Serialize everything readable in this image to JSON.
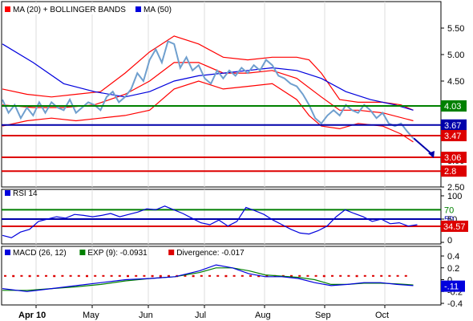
{
  "colors": {
    "price": "#6f9fce",
    "ma20": "#ff0000",
    "ma50": "#0000dd",
    "resistance": "#008000",
    "support": "#0000aa",
    "target": "#dd0000",
    "macd": "#0000dd",
    "signal": "#008000",
    "divergence": "#dd0000",
    "label_green": "#008000",
    "label_blue": "#0000aa",
    "label_red": "#dd0000",
    "grid": "#dddddd",
    "axis": "#000000"
  },
  "chart_data": [
    {
      "type": "line",
      "panel": "price",
      "legend": [
        {
          "label": "MA (20) + BOLLINGER BANDS",
          "color": "#ff0000"
        },
        {
          "label": "MA (50)",
          "color": "#0000dd"
        }
      ],
      "y_ticks": [
        "5.50",
        "5.00",
        "4.50",
        "4.00",
        "3.50",
        "3.00",
        "2.50"
      ],
      "ylim": [
        2.5,
        6.0
      ],
      "x_months": [
        "Apr 10",
        "May",
        "Jun",
        "Jul",
        "Aug",
        "Sep",
        "Oct"
      ],
      "series": {
        "price": [
          [
            0,
            4.15
          ],
          [
            3,
            3.9
          ],
          [
            6,
            4.05
          ],
          [
            9,
            3.8
          ],
          [
            12,
            4.0
          ],
          [
            15,
            3.85
          ],
          [
            18,
            4.1
          ],
          [
            21,
            3.9
          ],
          [
            24,
            4.1
          ],
          [
            27,
            4.0
          ],
          [
            30,
            3.95
          ],
          [
            33,
            4.15
          ],
          [
            36,
            3.9
          ],
          [
            39,
            4.0
          ],
          [
            42,
            4.1
          ],
          [
            45,
            4.05
          ],
          [
            48,
            3.95
          ],
          [
            51,
            4.2
          ],
          [
            54,
            4.3
          ],
          [
            57,
            4.1
          ],
          [
            60,
            4.2
          ],
          [
            63,
            4.35
          ],
          [
            66,
            4.65
          ],
          [
            69,
            4.5
          ],
          [
            72,
            4.9
          ],
          [
            75,
            5.1
          ],
          [
            78,
            4.85
          ],
          [
            81,
            5.25
          ],
          [
            84,
            5.2
          ],
          [
            87,
            4.75
          ],
          [
            90,
            4.95
          ],
          [
            93,
            4.7
          ],
          [
            96,
            4.8
          ],
          [
            99,
            4.55
          ],
          [
            102,
            4.45
          ],
          [
            105,
            4.7
          ],
          [
            108,
            4.55
          ],
          [
            111,
            4.7
          ],
          [
            114,
            4.6
          ],
          [
            117,
            4.75
          ],
          [
            120,
            4.65
          ],
          [
            123,
            4.8
          ],
          [
            126,
            4.7
          ],
          [
            129,
            4.9
          ],
          [
            132,
            4.8
          ],
          [
            135,
            4.6
          ],
          [
            138,
            4.55
          ],
          [
            141,
            4.45
          ],
          [
            144,
            4.4
          ],
          [
            147,
            4.25
          ],
          [
            150,
            4.05
          ],
          [
            153,
            3.8
          ],
          [
            156,
            3.7
          ],
          [
            159,
            3.85
          ],
          [
            162,
            3.95
          ],
          [
            165,
            3.85
          ],
          [
            168,
            4.05
          ],
          [
            171,
            3.95
          ],
          [
            174,
            3.9
          ],
          [
            177,
            4.05
          ],
          [
            180,
            3.95
          ],
          [
            183,
            3.8
          ],
          [
            186,
            3.9
          ],
          [
            189,
            3.7
          ],
          [
            192,
            3.65
          ],
          [
            195,
            3.7
          ],
          [
            198,
            3.55
          ],
          [
            201,
            3.42
          ]
        ],
        "ma20": [
          [
            0,
            4.05
          ],
          [
            15,
            4.0
          ],
          [
            30,
            4.0
          ],
          [
            45,
            4.05
          ],
          [
            60,
            4.25
          ],
          [
            72,
            4.5
          ],
          [
            84,
            4.85
          ],
          [
            96,
            4.85
          ],
          [
            108,
            4.65
          ],
          [
            120,
            4.65
          ],
          [
            132,
            4.7
          ],
          [
            144,
            4.55
          ],
          [
            156,
            4.2
          ],
          [
            165,
            3.95
          ],
          [
            174,
            3.95
          ],
          [
            186,
            3.9
          ],
          [
            201,
            3.75
          ]
        ],
        "bb_upper": [
          [
            0,
            4.35
          ],
          [
            12,
            4.25
          ],
          [
            24,
            4.2
          ],
          [
            36,
            4.25
          ],
          [
            48,
            4.3
          ],
          [
            60,
            4.65
          ],
          [
            72,
            5.05
          ],
          [
            84,
            5.35
          ],
          [
            96,
            5.2
          ],
          [
            108,
            4.95
          ],
          [
            120,
            4.9
          ],
          [
            132,
            4.95
          ],
          [
            144,
            4.95
          ],
          [
            150,
            4.9
          ],
          [
            156,
            4.65
          ],
          [
            165,
            4.15
          ],
          [
            174,
            4.1
          ],
          [
            186,
            4.1
          ],
          [
            195,
            4.05
          ],
          [
            201,
            3.95
          ]
        ],
        "bb_lower": [
          [
            0,
            3.65
          ],
          [
            12,
            3.75
          ],
          [
            24,
            3.8
          ],
          [
            36,
            3.75
          ],
          [
            48,
            3.8
          ],
          [
            60,
            3.85
          ],
          [
            72,
            3.95
          ],
          [
            84,
            4.35
          ],
          [
            96,
            4.5
          ],
          [
            108,
            4.35
          ],
          [
            120,
            4.4
          ],
          [
            132,
            4.45
          ],
          [
            144,
            4.15
          ],
          [
            150,
            3.85
          ],
          [
            156,
            3.65
          ],
          [
            165,
            3.6
          ],
          [
            174,
            3.7
          ],
          [
            186,
            3.65
          ],
          [
            195,
            3.5
          ],
          [
            201,
            3.35
          ]
        ],
        "ma50": [
          [
            0,
            5.2
          ],
          [
            15,
            4.85
          ],
          [
            30,
            4.45
          ],
          [
            45,
            4.3
          ],
          [
            60,
            4.2
          ],
          [
            72,
            4.3
          ],
          [
            84,
            4.5
          ],
          [
            96,
            4.6
          ],
          [
            108,
            4.65
          ],
          [
            120,
            4.7
          ],
          [
            132,
            4.75
          ],
          [
            144,
            4.7
          ],
          [
            156,
            4.55
          ],
          [
            168,
            4.3
          ],
          [
            180,
            4.15
          ],
          [
            192,
            4.05
          ],
          [
            201,
            3.95
          ]
        ]
      },
      "levels": [
        {
          "value": 4.03,
          "label": "4.03",
          "color": "#008000"
        },
        {
          "value": 3.67,
          "label": "3.67",
          "color": "#0000aa"
        },
        {
          "value": 3.47,
          "label": "3.47",
          "color": "#dd0000"
        },
        {
          "value": 3.06,
          "label": "3.06",
          "color": "#dd0000"
        },
        {
          "value": 2.8,
          "label": "2.8",
          "color": "#dd0000"
        }
      ]
    },
    {
      "type": "line",
      "panel": "rsi",
      "legend": [
        {
          "label": "RSI 14",
          "color": "#0000dd"
        }
      ],
      "y_ticks": [
        "100",
        "50",
        "0"
      ],
      "ylim": [
        0,
        100
      ],
      "levels": [
        {
          "value": 70,
          "label": "70",
          "color": "#008000"
        },
        {
          "value": 50,
          "label": "50",
          "color": "#0000aa"
        },
        {
          "value": 34.57,
          "label": "34.57",
          "color": "#dd0000"
        }
      ],
      "values": [
        [
          0,
          15
        ],
        [
          5,
          10
        ],
        [
          10,
          22
        ],
        [
          15,
          28
        ],
        [
          20,
          45
        ],
        [
          25,
          50
        ],
        [
          30,
          55
        ],
        [
          35,
          52
        ],
        [
          40,
          60
        ],
        [
          45,
          58
        ],
        [
          50,
          55
        ],
        [
          55,
          58
        ],
        [
          60,
          62
        ],
        [
          65,
          55
        ],
        [
          70,
          60
        ],
        [
          75,
          65
        ],
        [
          80,
          72
        ],
        [
          85,
          70
        ],
        [
          90,
          78
        ],
        [
          95,
          70
        ],
        [
          100,
          62
        ],
        [
          105,
          52
        ],
        [
          110,
          42
        ],
        [
          115,
          38
        ],
        [
          120,
          48
        ],
        [
          125,
          35
        ],
        [
          130,
          45
        ],
        [
          135,
          75
        ],
        [
          140,
          68
        ],
        [
          145,
          60
        ],
        [
          150,
          48
        ],
        [
          155,
          38
        ],
        [
          160,
          28
        ],
        [
          165,
          20
        ],
        [
          170,
          18
        ],
        [
          175,
          25
        ],
        [
          180,
          35
        ],
        [
          185,
          55
        ],
        [
          190,
          70
        ],
        [
          195,
          62
        ],
        [
          200,
          55
        ],
        [
          205,
          45
        ],
        [
          210,
          50
        ],
        [
          215,
          40
        ],
        [
          220,
          42
        ],
        [
          225,
          35
        ],
        [
          230,
          38
        ]
      ]
    },
    {
      "type": "line",
      "panel": "macd",
      "legend": [
        {
          "label": "MACD (26, 12)",
          "color": "#0000dd"
        },
        {
          "label": "EXP (9): -0.0931",
          "color": "#008000"
        },
        {
          "label": "Divergence: -0.017",
          "color": "#dd0000"
        }
      ],
      "y_ticks": [
        "0.4",
        "0.2",
        "0",
        "-0.2",
        "-0.4"
      ],
      "ylim": [
        -0.4,
        0.4
      ],
      "current_label": "-.11",
      "macd": [
        [
          0,
          -0.15
        ],
        [
          15,
          -0.2
        ],
        [
          30,
          -0.15
        ],
        [
          45,
          -0.1
        ],
        [
          60,
          -0.05
        ],
        [
          75,
          0.0
        ],
        [
          90,
          0.02
        ],
        [
          105,
          0.05
        ],
        [
          120,
          0.15
        ],
        [
          130,
          0.25
        ],
        [
          140,
          0.2
        ],
        [
          150,
          0.1
        ],
        [
          160,
          0.05
        ],
        [
          170,
          0.05
        ],
        [
          180,
          0.02
        ],
        [
          190,
          -0.05
        ],
        [
          200,
          -0.1
        ],
        [
          210,
          -0.08
        ],
        [
          220,
          -0.05
        ],
        [
          230,
          -0.05
        ],
        [
          240,
          -0.08
        ],
        [
          250,
          -0.1
        ]
      ],
      "signal": [
        [
          0,
          -0.18
        ],
        [
          15,
          -0.18
        ],
        [
          30,
          -0.15
        ],
        [
          45,
          -0.12
        ],
        [
          60,
          -0.08
        ],
        [
          75,
          -0.02
        ],
        [
          90,
          0.02
        ],
        [
          105,
          0.05
        ],
        [
          120,
          0.12
        ],
        [
          130,
          0.2
        ],
        [
          140,
          0.2
        ],
        [
          150,
          0.15
        ],
        [
          160,
          0.08
        ],
        [
          170,
          0.06
        ],
        [
          180,
          0.04
        ],
        [
          190,
          0.0
        ],
        [
          200,
          -0.08
        ],
        [
          210,
          -0.08
        ],
        [
          220,
          -0.06
        ],
        [
          230,
          -0.06
        ],
        [
          240,
          -0.07
        ],
        [
          250,
          -0.09
        ]
      ],
      "divergence": [
        0.05,
        0.06,
        0.05,
        0.06,
        0.04,
        0.05,
        0.06,
        0.05,
        0.05,
        0.04,
        0.06,
        0.05,
        0.04,
        0.05,
        0.05,
        0.06,
        0.05,
        0.04,
        0.06,
        0.07,
        0.08,
        0.06,
        0.05,
        0.06,
        0.05,
        0.04,
        0.05,
        0.06,
        0.05,
        0.04,
        0.05,
        0.06,
        0.05,
        0.04,
        0.05,
        0.04,
        0.05,
        0.04,
        0.05,
        0.06,
        0.05,
        0.04,
        0.05,
        0.06,
        0.05,
        0.04,
        0.05,
        0.04,
        0.05,
        0.05
      ]
    }
  ]
}
